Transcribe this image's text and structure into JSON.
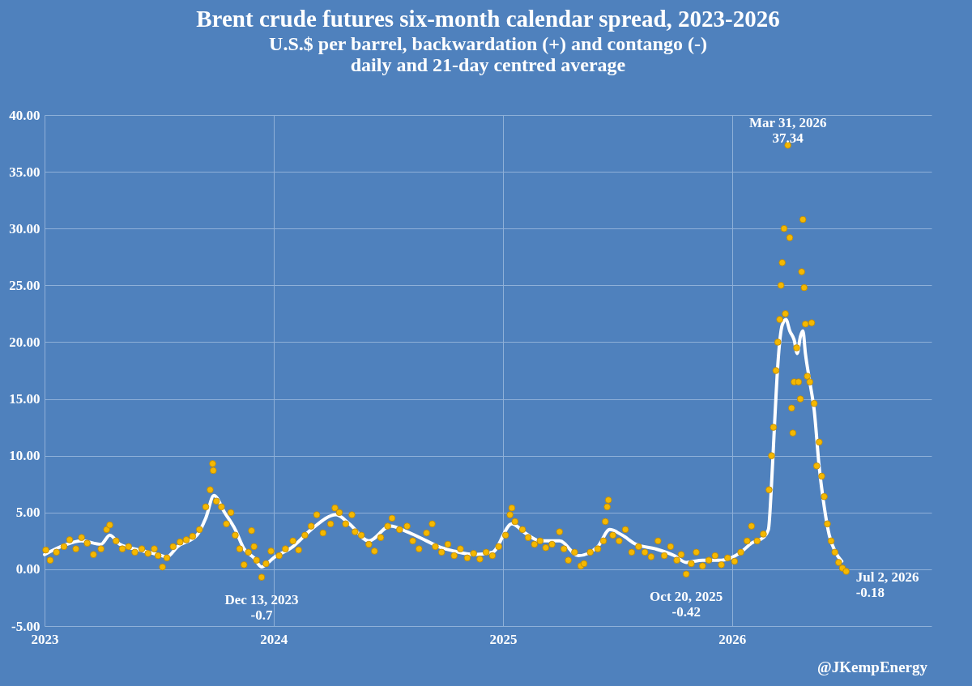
{
  "chart_data": {
    "type": "scatter",
    "title": "Brent crude futures six-month calendar spread, 2023-2026",
    "subtitle": "U.S.$ per barrel, backwardation (+) and contango (-)\ndaily and 21-day centred average",
    "xlim": [
      "2023-01-01",
      "2026-11-15"
    ],
    "xticks": [
      "2023",
      "2024",
      "2025",
      "2026"
    ],
    "ylim": [
      -5,
      40
    ],
    "yticks": [
      {
        "value": 40,
        "label": "40.00"
      },
      {
        "value": 35,
        "label": "35.00"
      },
      {
        "value": 30,
        "label": "30.00"
      },
      {
        "value": 25,
        "label": "25.00"
      },
      {
        "value": 20,
        "label": "20.00"
      },
      {
        "value": 15,
        "label": "15.00"
      },
      {
        "value": 10,
        "label": "10.00"
      },
      {
        "value": 5,
        "label": "5.00"
      },
      {
        "value": 0,
        "label": "0.00"
      },
      {
        "value": -5,
        "label": "-5.00"
      }
    ],
    "grid": true,
    "series": [
      {
        "type": "line",
        "color": "#ffffff",
        "line_style": "solid",
        "x": [
          "2023-01-01",
          "2023-02-01",
          "2023-03-01",
          "2023-04-01",
          "2023-04-15",
          "2023-05-01",
          "2023-06-01",
          "2023-07-01",
          "2023-07-15",
          "2023-08-01",
          "2023-09-01",
          "2023-09-15",
          "2023-09-28",
          "2023-10-15",
          "2023-11-01",
          "2023-11-15",
          "2023-12-01",
          "2023-12-13",
          "2024-01-01",
          "2024-02-01",
          "2024-03-01",
          "2024-04-10",
          "2024-05-01",
          "2024-06-01",
          "2024-07-05",
          "2024-08-01",
          "2024-09-01",
          "2024-09-20",
          "2024-10-15",
          "2024-11-15",
          "2024-12-15",
          "2025-01-15",
          "2025-02-05",
          "2025-03-01",
          "2025-04-01",
          "2025-05-01",
          "2025-06-01",
          "2025-06-20",
          "2025-07-10",
          "2025-08-01",
          "2025-09-01",
          "2025-10-01",
          "2025-10-20",
          "2025-11-15",
          "2025-12-15",
          "2026-01-15",
          "2026-02-01",
          "2026-02-20",
          "2026-02-28",
          "2026-03-05",
          "2026-03-10",
          "2026-03-15",
          "2026-03-22",
          "2026-03-28",
          "2026-04-03",
          "2026-04-10",
          "2026-04-15",
          "2026-04-20",
          "2026-04-24",
          "2026-04-28",
          "2026-05-05",
          "2026-05-12",
          "2026-05-20",
          "2026-05-28",
          "2026-06-05",
          "2026-06-15",
          "2026-06-25"
        ],
        "values": [
          1.3,
          2.1,
          2.5,
          2.2,
          3.0,
          2.2,
          1.7,
          1.3,
          1.1,
          2.0,
          3.0,
          4.5,
          6.5,
          5.0,
          3.5,
          1.8,
          1.0,
          0.2,
          1.0,
          2.0,
          3.5,
          4.8,
          4.0,
          2.5,
          3.8,
          3.3,
          2.5,
          2.0,
          1.6,
          1.3,
          1.5,
          4.0,
          3.2,
          2.5,
          2.5,
          1.2,
          2.0,
          3.5,
          3.0,
          2.2,
          1.8,
          1.2,
          0.6,
          0.8,
          0.8,
          1.5,
          2.3,
          2.8,
          3.5,
          7.5,
          13.0,
          18.0,
          21.5,
          22.0,
          21.0,
          20.2,
          19.0,
          20.5,
          21.0,
          19.0,
          16.5,
          14.0,
          9.0,
          5.5,
          3.0,
          1.5,
          0.7
        ]
      },
      {
        "color": "#f5b800",
        "marker": "circle",
        "x": [
          "2023-01-03",
          "2023-01-10",
          "2023-01-20",
          "2023-02-01",
          "2023-02-10",
          "2023-02-20",
          "2023-03-01",
          "2023-03-10",
          "2023-03-20",
          "2023-04-01",
          "2023-04-10",
          "2023-04-15",
          "2023-04-25",
          "2023-05-05",
          "2023-05-15",
          "2023-05-25",
          "2023-06-05",
          "2023-06-15",
          "2023-06-25",
          "2023-07-01",
          "2023-07-08",
          "2023-07-15",
          "2023-07-25",
          "2023-08-05",
          "2023-08-15",
          "2023-08-25",
          "2023-09-05",
          "2023-09-15",
          "2023-09-22",
          "2023-09-26",
          "2023-09-27",
          "2023-10-02",
          "2023-10-10",
          "2023-10-18",
          "2023-10-25",
          "2023-11-01",
          "2023-11-08",
          "2023-11-15",
          "2023-11-22",
          "2023-11-27",
          "2023-12-01",
          "2023-12-05",
          "2023-12-13",
          "2023-12-20",
          "2023-12-28",
          "2024-01-10",
          "2024-01-20",
          "2024-02-01",
          "2024-02-10",
          "2024-02-20",
          "2024-03-01",
          "2024-03-10",
          "2024-03-20",
          "2024-04-01",
          "2024-04-08",
          "2024-04-15",
          "2024-04-25",
          "2024-05-05",
          "2024-05-10",
          "2024-05-20",
          "2024-06-01",
          "2024-06-10",
          "2024-06-20",
          "2024-07-01",
          "2024-07-08",
          "2024-07-20",
          "2024-08-01",
          "2024-08-10",
          "2024-08-20",
          "2024-09-01",
          "2024-09-10",
          "2024-09-15",
          "2024-09-25",
          "2024-10-05",
          "2024-10-15",
          "2024-10-25",
          "2024-11-05",
          "2024-11-15",
          "2024-11-25",
          "2024-12-05",
          "2024-12-15",
          "2024-12-25",
          "2025-01-05",
          "2025-01-12",
          "2025-01-15",
          "2025-01-20",
          "2025-02-01",
          "2025-02-10",
          "2025-02-20",
          "2025-03-01",
          "2025-03-10",
          "2025-03-20",
          "2025-04-01",
          "2025-04-08",
          "2025-04-15",
          "2025-04-25",
          "2025-05-05",
          "2025-05-10",
          "2025-05-20",
          "2025-06-01",
          "2025-06-10",
          "2025-06-13",
          "2025-06-16",
          "2025-06-18",
          "2025-06-25",
          "2025-07-05",
          "2025-07-15",
          "2025-07-25",
          "2025-08-05",
          "2025-08-15",
          "2025-08-25",
          "2025-09-05",
          "2025-09-15",
          "2025-09-25",
          "2025-10-05",
          "2025-10-12",
          "2025-10-20",
          "2025-10-28",
          "2025-11-05",
          "2025-11-15",
          "2025-11-25",
          "2025-12-05",
          "2025-12-15",
          "2025-12-25",
          "2026-01-05",
          "2026-01-15",
          "2026-01-25",
          "2026-02-01",
          "2026-02-10",
          "2026-02-20",
          "2026-03-01",
          "2026-03-05",
          "2026-03-08",
          "2026-03-12",
          "2026-03-15",
          "2026-03-18",
          "2026-03-20",
          "2026-03-22",
          "2026-03-25",
          "2026-03-27",
          "2026-03-31",
          "2026-04-03",
          "2026-04-06",
          "2026-04-08",
          "2026-04-10",
          "2026-04-14",
          "2026-04-17",
          "2026-04-20",
          "2026-04-22",
          "2026-04-24",
          "2026-04-26",
          "2026-04-28",
          "2026-05-01",
          "2026-05-05",
          "2026-05-08",
          "2026-05-12",
          "2026-05-16",
          "2026-05-20",
          "2026-05-24",
          "2026-05-28",
          "2026-06-02",
          "2026-06-08",
          "2026-06-14",
          "2026-06-20",
          "2026-06-26",
          "2026-07-02"
        ],
        "values": [
          1.7,
          0.8,
          1.5,
          2.0,
          2.6,
          1.8,
          2.8,
          2.3,
          1.3,
          1.8,
          3.5,
          3.9,
          2.5,
          1.8,
          2.0,
          1.5,
          1.8,
          1.4,
          1.8,
          1.2,
          0.2,
          1.0,
          2.0,
          2.4,
          2.6,
          2.9,
          3.5,
          5.5,
          7.0,
          9.3,
          8.7,
          6.0,
          5.5,
          4.0,
          5.0,
          3.0,
          1.8,
          0.4,
          1.5,
          3.4,
          2.0,
          0.8,
          -0.7,
          0.5,
          1.6,
          1.2,
          1.8,
          2.5,
          1.7,
          3.0,
          3.8,
          4.8,
          3.2,
          4.0,
          5.4,
          5.0,
          4.0,
          4.8,
          3.3,
          3.0,
          2.2,
          1.6,
          2.8,
          3.8,
          4.5,
          3.5,
          3.8,
          2.5,
          1.8,
          3.2,
          4.0,
          2.0,
          1.5,
          2.2,
          1.2,
          1.8,
          1.0,
          1.4,
          0.9,
          1.5,
          1.2,
          2.0,
          3.0,
          4.8,
          5.4,
          4.2,
          3.5,
          2.8,
          2.2,
          2.5,
          1.9,
          2.2,
          3.3,
          1.8,
          0.8,
          1.5,
          0.3,
          0.5,
          1.5,
          1.8,
          2.5,
          4.2,
          5.5,
          6.1,
          3.0,
          2.5,
          3.5,
          1.5,
          2.0,
          1.5,
          1.1,
          2.5,
          1.2,
          2.0,
          0.8,
          1.3,
          -0.42,
          0.5,
          1.5,
          0.3,
          0.8,
          1.2,
          0.4,
          1.0,
          0.7,
          1.5,
          2.5,
          3.8,
          2.5,
          3.1,
          7.0,
          10.0,
          12.5,
          17.5,
          20.0,
          22.0,
          25.0,
          27.0,
          30.0,
          22.5,
          37.34,
          29.2,
          14.2,
          12.0,
          16.5,
          19.5,
          16.5,
          15.0,
          26.2,
          30.8,
          24.8,
          21.6,
          17.0,
          16.5,
          21.7,
          14.6,
          9.1,
          11.2,
          8.2,
          6.4,
          4.0,
          2.5,
          1.5,
          0.6,
          0.1,
          -0.18
        ]
      }
    ],
    "annotations": [
      {
        "text": "Mar 31, 2026\n37.34",
        "x": "2026-03-31",
        "y": 37.34
      },
      {
        "text": "Dec 13, 2023\n-0.7",
        "x": "2023-12-13",
        "y": -0.7
      },
      {
        "text": "Oct 20, 2025\n-0.42",
        "x": "2025-10-20",
        "y": -0.42
      },
      {
        "text": "Jul 2, 2026\n-0.18",
        "x": "2026-07-02",
        "y": -0.18
      },
      "@JKempEnergy"
    ]
  }
}
